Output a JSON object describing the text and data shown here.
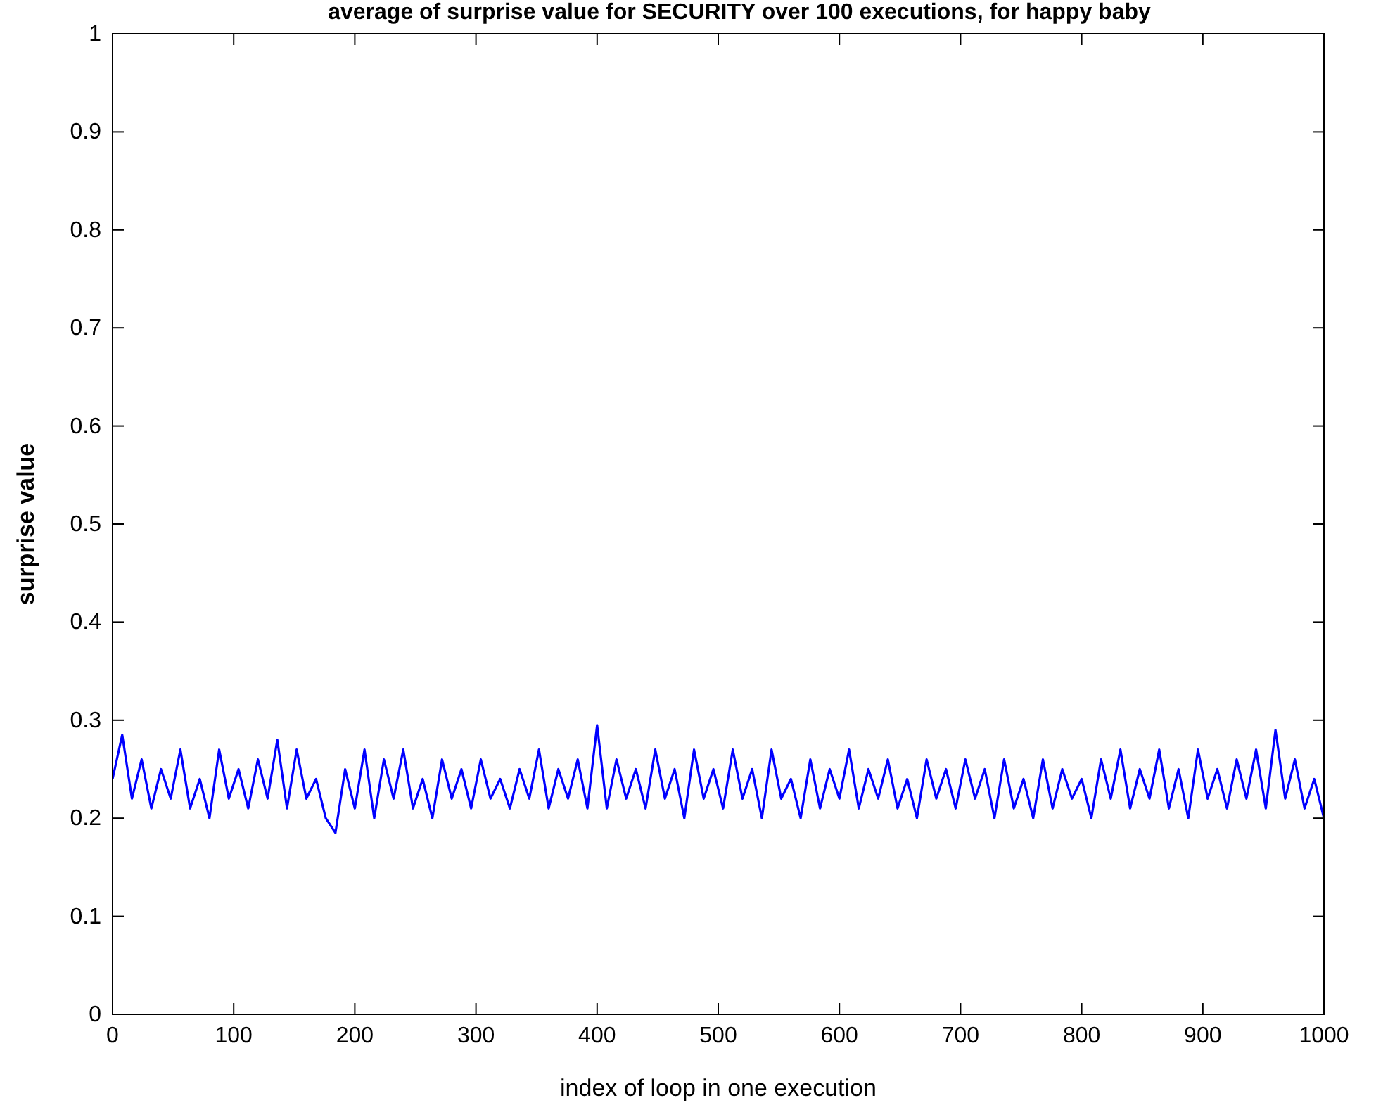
{
  "chart_data": {
    "type": "line",
    "title": "average of surprise value for SECURITY over 100 executions, for happy baby",
    "xlabel": "index of loop in one execution",
    "ylabel": "surprise value",
    "x": [
      0,
      8,
      16,
      24,
      32,
      40,
      48,
      56,
      64,
      72,
      80,
      88,
      96,
      104,
      112,
      120,
      128,
      136,
      144,
      152,
      160,
      168,
      176,
      184,
      192,
      200,
      208,
      216,
      224,
      232,
      240,
      248,
      256,
      264,
      272,
      280,
      288,
      296,
      304,
      312,
      320,
      328,
      336,
      344,
      352,
      360,
      368,
      376,
      384,
      392,
      400,
      408,
      416,
      424,
      432,
      440,
      448,
      456,
      464,
      472,
      480,
      488,
      496,
      504,
      512,
      520,
      528,
      536,
      544,
      552,
      560,
      568,
      576,
      584,
      592,
      600,
      608,
      616,
      624,
      632,
      640,
      648,
      656,
      664,
      672,
      680,
      688,
      696,
      704,
      712,
      720,
      728,
      736,
      744,
      752,
      760,
      768,
      776,
      784,
      792,
      800,
      808,
      816,
      824,
      832,
      840,
      848,
      856,
      864,
      872,
      880,
      888,
      896,
      904,
      912,
      920,
      928,
      936,
      944,
      952,
      960,
      968,
      976,
      984,
      992,
      1000
    ],
    "series": [
      {
        "color": "#0000ff",
        "values": [
          0.24,
          0.285,
          0.22,
          0.26,
          0.21,
          0.25,
          0.22,
          0.27,
          0.21,
          0.24,
          0.2,
          0.27,
          0.22,
          0.25,
          0.21,
          0.26,
          0.22,
          0.28,
          0.21,
          0.27,
          0.22,
          0.24,
          0.2,
          0.185,
          0.25,
          0.21,
          0.27,
          0.2,
          0.26,
          0.22,
          0.27,
          0.21,
          0.24,
          0.2,
          0.26,
          0.22,
          0.25,
          0.21,
          0.26,
          0.22,
          0.24,
          0.21,
          0.25,
          0.22,
          0.27,
          0.21,
          0.25,
          0.22,
          0.26,
          0.21,
          0.295,
          0.21,
          0.26,
          0.22,
          0.25,
          0.21,
          0.27,
          0.22,
          0.25,
          0.2,
          0.27,
          0.22,
          0.25,
          0.21,
          0.27,
          0.22,
          0.25,
          0.2,
          0.27,
          0.22,
          0.24,
          0.2,
          0.26,
          0.21,
          0.25,
          0.22,
          0.27,
          0.21,
          0.25,
          0.22,
          0.26,
          0.21,
          0.24,
          0.2,
          0.26,
          0.22,
          0.25,
          0.21,
          0.26,
          0.22,
          0.25,
          0.2,
          0.26,
          0.21,
          0.24,
          0.2,
          0.26,
          0.21,
          0.25,
          0.22,
          0.24,
          0.2,
          0.26,
          0.22,
          0.27,
          0.21,
          0.25,
          0.22,
          0.27,
          0.21,
          0.25,
          0.2,
          0.27,
          0.22,
          0.25,
          0.21,
          0.26,
          0.22,
          0.27,
          0.21,
          0.29,
          0.22,
          0.26,
          0.21,
          0.24,
          0.2
        ]
      }
    ],
    "xlim": [
      0,
      1000
    ],
    "xticks": [
      0,
      100,
      200,
      300,
      400,
      500,
      600,
      700,
      800,
      900,
      1000
    ],
    "ylim": [
      0,
      1
    ],
    "yticks": [
      0,
      0.1,
      0.2,
      0.3,
      0.4,
      0.5,
      0.6,
      0.7,
      0.8,
      0.9,
      1
    ],
    "grid": false,
    "marker": "none",
    "line_style": "solid"
  }
}
